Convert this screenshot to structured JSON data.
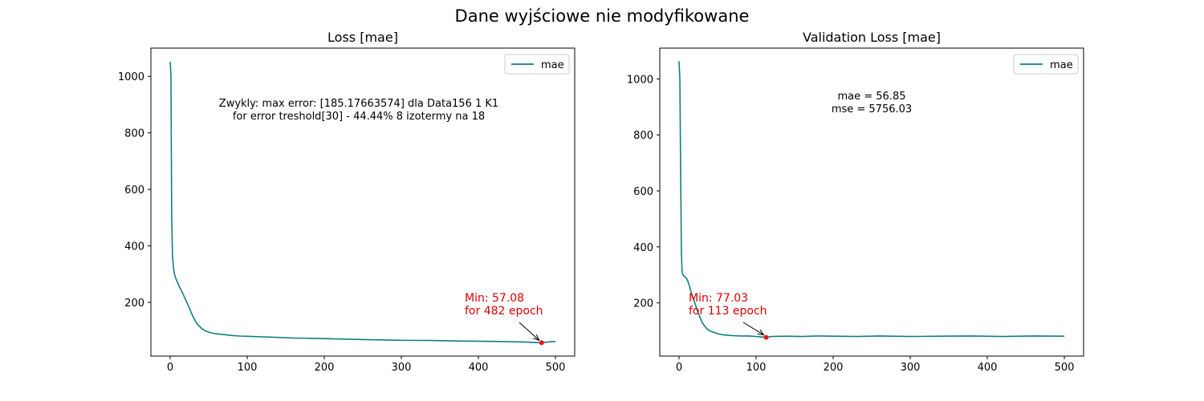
{
  "figure": {
    "suptitle": "Dane wyjściowe nie modyfikowane",
    "line_color": "#117f80",
    "min_color": "#e31a1c",
    "annotation_color": "#dd0000"
  },
  "chart_data": [
    {
      "type": "line",
      "title": "Loss [mae]",
      "xlabel": "",
      "ylabel": "",
      "xlim": [
        -25,
        525
      ],
      "ylim": [
        10,
        1100
      ],
      "xticks": [
        0,
        100,
        200,
        300,
        400,
        500
      ],
      "yticks": [
        200,
        400,
        600,
        800,
        1000
      ],
      "grid": false,
      "legend": "top-right",
      "series": [
        {
          "name": "mae",
          "x": [
            0,
            1,
            2,
            3,
            4,
            5,
            6,
            8,
            10,
            12,
            15,
            18,
            20,
            22,
            25,
            28,
            30,
            33,
            36,
            40,
            45,
            50,
            55,
            60,
            70,
            80,
            90,
            100,
            120,
            140,
            160,
            180,
            200,
            230,
            260,
            300,
            340,
            380,
            420,
            460,
            482,
            490,
            500
          ],
          "y": [
            1052,
            1000,
            500,
            370,
            330,
            310,
            295,
            280,
            268,
            255,
            240,
            222,
            210,
            198,
            180,
            160,
            148,
            132,
            120,
            110,
            100,
            95,
            91,
            89,
            86,
            83,
            81,
            80,
            78,
            76,
            74,
            73,
            72,
            70,
            68,
            66,
            65,
            63,
            62,
            60,
            57.08,
            60,
            62
          ]
        }
      ],
      "min_point": {
        "x": 482,
        "y": 57.08
      },
      "annotation": [
        "Min: 57.08",
        "for 482 epoch"
      ],
      "text_box": [
        "Zwykly: max error: [185.17663574]  dla Data156 1 K1",
        "for error treshold[30] - 44.44%     8 izotermy na 18"
      ]
    },
    {
      "type": "line",
      "title": "Validation Loss [mae]",
      "xlabel": "",
      "ylabel": "",
      "xlim": [
        -25,
        525
      ],
      "ylim": [
        10,
        1110
      ],
      "xticks": [
        0,
        100,
        200,
        300,
        400,
        500
      ],
      "yticks": [
        200,
        400,
        600,
        800,
        1000
      ],
      "grid": false,
      "legend": "top-right",
      "series": [
        {
          "name": "mae",
          "x": [
            0,
            1,
            2,
            3,
            4,
            5,
            7,
            9,
            11,
            13,
            15,
            18,
            21,
            24,
            27,
            30,
            33,
            36,
            40,
            45,
            50,
            55,
            60,
            70,
            80,
            90,
            100,
            113,
            120,
            140,
            160,
            180,
            200,
            230,
            260,
            300,
            340,
            380,
            420,
            460,
            500
          ],
          "y": [
            1063,
            1000,
            700,
            380,
            310,
            300,
            295,
            290,
            280,
            265,
            245,
            220,
            195,
            170,
            150,
            130,
            118,
            108,
            100,
            95,
            90,
            87,
            85,
            83,
            82,
            82,
            80,
            77.03,
            80,
            81,
            80,
            82,
            81,
            80,
            82,
            80,
            81,
            82,
            80,
            82,
            81
          ]
        }
      ],
      "min_point": {
        "x": 113,
        "y": 77.03
      },
      "annotation": [
        "Min: 77.03",
        "for 113 epoch"
      ],
      "text_box": [
        "mae = 56.85",
        "mse = 5756.03"
      ]
    }
  ]
}
